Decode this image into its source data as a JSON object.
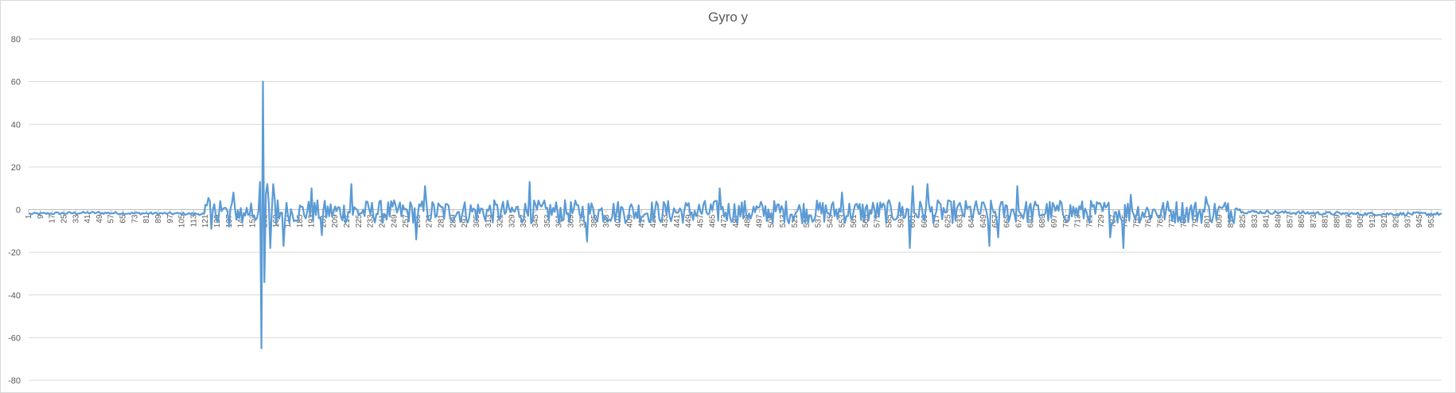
{
  "chart_data": {
    "type": "line",
    "title": "Gyro y",
    "xlabel": "",
    "ylabel": "",
    "ylim": [
      -80,
      80
    ],
    "y_ticks": [
      80,
      60,
      40,
      20,
      0,
      -20,
      -40,
      -60,
      -80
    ],
    "x_range": [
      1,
      960
    ],
    "x_tick_step": 8,
    "x_tick_labels": [
      "1",
      "9",
      "17",
      "25",
      "33",
      "41",
      "49",
      "57",
      "65",
      "73",
      "81",
      "89",
      "97",
      "105",
      "113",
      "121",
      "129",
      "137",
      "145",
      "153",
      "161",
      "169",
      "177",
      "185",
      "193",
      "201",
      "209",
      "217",
      "225",
      "233",
      "241",
      "249",
      "257",
      "265",
      "273",
      "281",
      "289",
      "297",
      "305",
      "313",
      "321",
      "329",
      "337",
      "345",
      "353",
      "361",
      "369",
      "377",
      "385",
      "393",
      "401",
      "409",
      "417",
      "425",
      "433",
      "441",
      "449",
      "457",
      "465",
      "473",
      "481",
      "489",
      "497",
      "505",
      "513",
      "521",
      "529",
      "537",
      "545",
      "553",
      "561",
      "569",
      "577",
      "585",
      "593",
      "601",
      "609",
      "617",
      "625",
      "633",
      "641",
      "649",
      "657",
      "665",
      "673",
      "681",
      "689",
      "697",
      "705",
      "713",
      "721",
      "729",
      "737",
      "745",
      "753",
      "761",
      "769",
      "777",
      "785",
      "793",
      "801",
      "809",
      "817",
      "825",
      "833",
      "841",
      "849",
      "857",
      "865",
      "873",
      "881",
      "889",
      "897",
      "905",
      "913",
      "921",
      "929",
      "937",
      "945",
      "953"
    ],
    "grid": true,
    "legend": "none",
    "series": [
      {
        "name": "Gyro y",
        "color": "#5b9bd5",
        "key_points": [
          {
            "x": 1,
            "y": -2
          },
          {
            "x": 40,
            "y": -1.5
          },
          {
            "x": 120,
            "y": -2
          },
          {
            "x": 123,
            "y": 5.5
          },
          {
            "x": 125,
            "y": -9
          },
          {
            "x": 131,
            "y": 4
          },
          {
            "x": 137,
            "y": -8
          },
          {
            "x": 140,
            "y": 8
          },
          {
            "x": 146,
            "y": -6
          },
          {
            "x": 152,
            "y": 3
          },
          {
            "x": 156,
            "y": -4
          },
          {
            "x": 158,
            "y": 13
          },
          {
            "x": 159,
            "y": -65
          },
          {
            "x": 160,
            "y": 60
          },
          {
            "x": 161,
            "y": -34
          },
          {
            "x": 163,
            "y": 12
          },
          {
            "x": 165,
            "y": -18
          },
          {
            "x": 167,
            "y": 12
          },
          {
            "x": 169,
            "y": -7
          },
          {
            "x": 174,
            "y": -17
          },
          {
            "x": 193,
            "y": 10
          },
          {
            "x": 200,
            "y": -12
          },
          {
            "x": 220,
            "y": 12
          },
          {
            "x": 264,
            "y": -14
          },
          {
            "x": 270,
            "y": 11
          },
          {
            "x": 341,
            "y": 13
          },
          {
            "x": 380,
            "y": -15
          },
          {
            "x": 470,
            "y": 10
          },
          {
            "x": 553,
            "y": 8
          },
          {
            "x": 599,
            "y": -18
          },
          {
            "x": 601,
            "y": 11
          },
          {
            "x": 611,
            "y": 12
          },
          {
            "x": 653,
            "y": -17
          },
          {
            "x": 659,
            "y": -13
          },
          {
            "x": 672,
            "y": 11
          },
          {
            "x": 735,
            "y": -13
          },
          {
            "x": 744,
            "y": -18
          },
          {
            "x": 749,
            "y": 7
          },
          {
            "x": 800,
            "y": 6
          },
          {
            "x": 815,
            "y": 3
          },
          {
            "x": 825,
            "y": -1
          },
          {
            "x": 900,
            "y": -2
          },
          {
            "x": 960,
            "y": -2
          }
        ]
      }
    ]
  }
}
